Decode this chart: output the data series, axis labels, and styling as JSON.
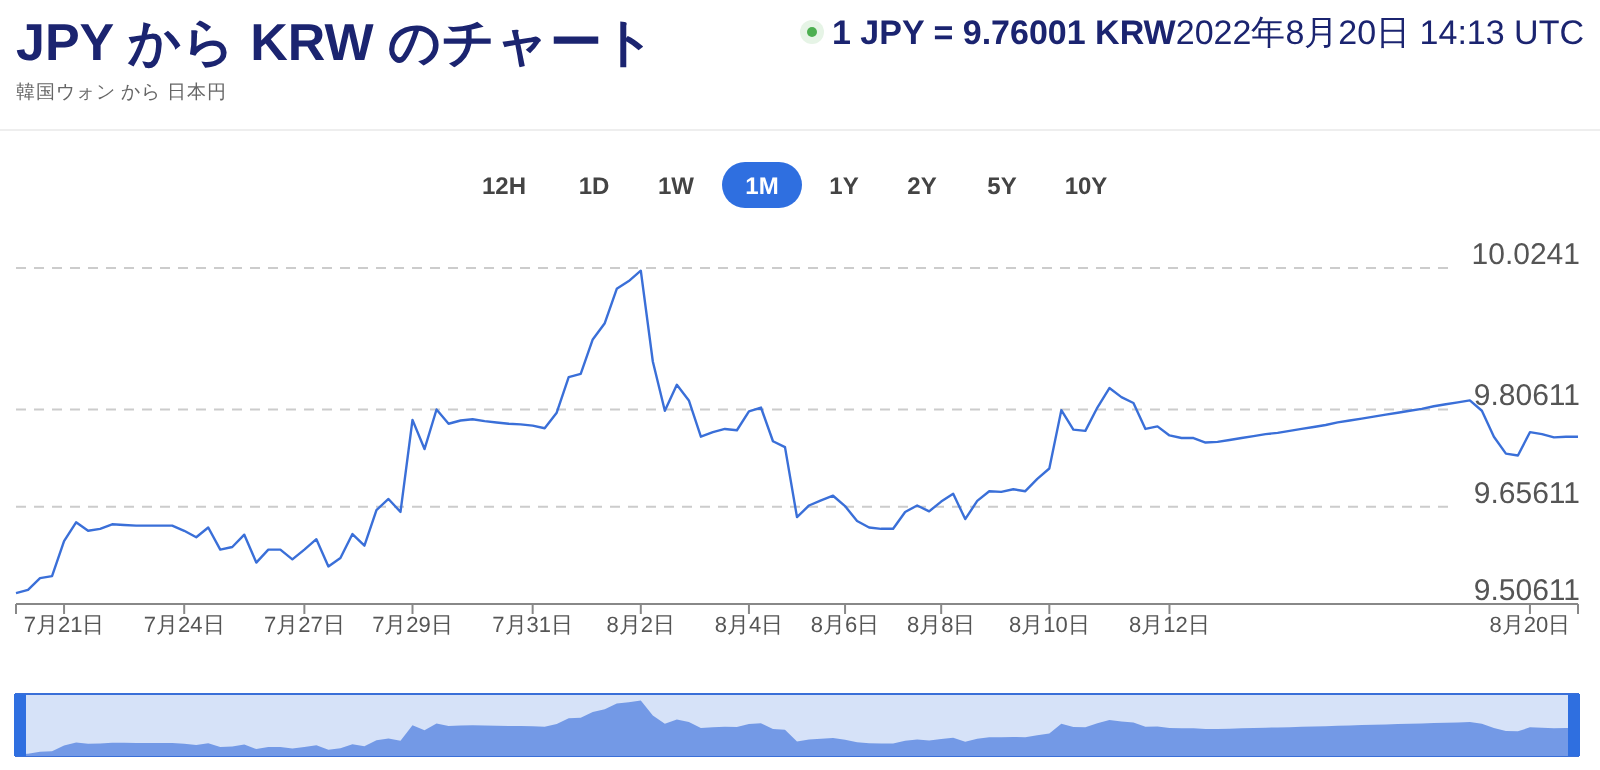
{
  "chart_data": {
    "type": "line",
    "title": "JPY から KRW のチャート",
    "subtitle": "韓国ウォン から 日本円",
    "annotations": [
      "1 JPY = 9.76001 KRW",
      "2022年8月20日 14:13 UTC",
      "12H",
      "1D",
      "1W",
      "1M",
      "1Y",
      "2Y",
      "5Y",
      "10Y"
    ],
    "categories": [
      null,
      null,
      null,
      null,
      "7月21日",
      null,
      null,
      null,
      null,
      null,
      null,
      null,
      null,
      null,
      "7月24日",
      null,
      null,
      null,
      null,
      null,
      null,
      null,
      null,
      null,
      "7月27日",
      null,
      null,
      null,
      null,
      null,
      null,
      null,
      null,
      "7月29日",
      null,
      null,
      null,
      null,
      null,
      null,
      null,
      null,
      null,
      "7月31日",
      null,
      null,
      null,
      null,
      null,
      null,
      null,
      null,
      "8月2日",
      null,
      null,
      null,
      null,
      null,
      null,
      null,
      null,
      "8月4日",
      null,
      null,
      null,
      null,
      null,
      null,
      null,
      "8月6日",
      null,
      null,
      null,
      null,
      null,
      null,
      null,
      "8月8日",
      null,
      null,
      null,
      null,
      null,
      null,
      null,
      null,
      "8月10日",
      null,
      null,
      null,
      null,
      null,
      null,
      null,
      null,
      null,
      "8月12日",
      null,
      null,
      null,
      null,
      null,
      null,
      null,
      null,
      null,
      null,
      null,
      null,
      null,
      null,
      null,
      null,
      null,
      null,
      null,
      null,
      null,
      null,
      null,
      null,
      null,
      null,
      null,
      null,
      null,
      "8月20日",
      null,
      null,
      null,
      null
    ],
    "ylim": [
      9.50611,
      10.0241
    ],
    "yticks": [
      9.50611,
      9.65611,
      9.80611,
      10.0241
    ],
    "grid": "y",
    "marker": "none",
    "line_style": "solid",
    "series": [
      {
        "color": "#3a6fd8",
        "values": [
          9.523,
          9.528,
          9.546,
          9.549,
          9.603,
          9.632,
          9.619,
          9.622,
          9.629,
          9.628,
          9.627,
          9.627,
          9.627,
          9.627,
          9.619,
          9.609,
          9.624,
          9.59,
          9.594,
          9.613,
          9.57,
          9.59,
          9.59,
          9.575,
          9.59,
          9.606,
          9.564,
          9.577,
          9.614,
          9.596,
          9.651,
          9.668,
          9.648,
          9.79,
          9.745,
          9.806,
          9.784,
          9.789,
          9.791,
          9.788,
          9.786,
          9.784,
          9.783,
          9.781,
          9.777,
          9.801,
          9.856,
          9.861,
          9.914,
          9.939,
          9.992,
          10.004,
          10.02,
          9.88,
          9.804,
          9.844,
          9.82,
          9.764,
          9.771,
          9.776,
          9.774,
          9.803,
          9.809,
          9.757,
          9.748,
          9.64,
          9.658,
          9.666,
          9.673,
          9.657,
          9.634,
          9.624,
          9.622,
          9.622,
          9.648,
          9.658,
          9.649,
          9.664,
          9.676,
          9.637,
          9.665,
          9.68,
          9.679,
          9.683,
          9.68,
          9.699,
          9.715,
          9.805,
          9.775,
          9.773,
          9.809,
          9.839,
          9.825,
          9.816,
          9.776,
          9.78,
          9.766,
          9.762,
          9.762,
          9.755,
          9.756,
          9.759,
          9.762,
          9.765,
          9.768,
          9.77,
          9.773,
          9.776,
          9.779,
          9.782,
          9.786,
          9.789,
          9.792,
          9.795,
          9.798,
          9.801,
          9.804,
          9.807,
          9.811,
          9.814,
          9.817,
          9.82,
          9.804,
          9.764,
          9.738,
          9.735,
          9.771,
          9.768,
          9.763,
          9.764,
          9.764
        ]
      }
    ]
  }
}
